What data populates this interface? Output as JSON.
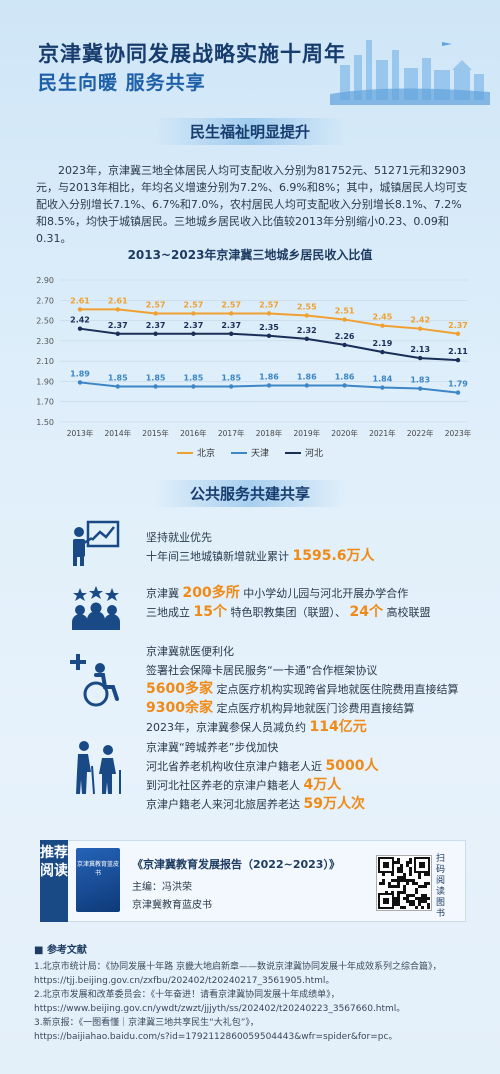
{
  "header": {
    "title": "京津冀协同发展战略实施十周年",
    "subtitle": "民生向暖  服务共享"
  },
  "section1": {
    "title": "民生福祉明显提升",
    "paragraph": "2023年，京津冀三地全体居民人均可支配收入分别为81752元、51271元和32903元，与2013年相比，年均名义增速分别为7.2%、6.9%和8%；其中，城镇居民人均可支配收入分别增长7.1%、6.7%和7.0%，农村居民人均可支配收入分别增长8.1%、7.2%和8.5%，均快于城镇居民。三地城乡居民收入比值较2013年分别缩小0.23、0.09和0.31。"
  },
  "chart_data": {
    "type": "line",
    "title": "2013~2023年京津冀三地城乡居民收入比值",
    "x": [
      "2013年",
      "2014年",
      "2015年",
      "2016年",
      "2017年",
      "2018年",
      "2019年",
      "2020年",
      "2021年",
      "2022年",
      "2023年"
    ],
    "yticks": [
      "2.90",
      "2.70",
      "2.50",
      "2.30",
      "2.10",
      "1.90",
      "1.70",
      "1.50"
    ],
    "ylim": [
      1.5,
      2.9
    ],
    "legend_position": "bottom",
    "series": [
      {
        "name": "北京",
        "color": "#f0a030",
        "values": [
          2.61,
          2.61,
          2.57,
          2.57,
          2.57,
          2.57,
          2.55,
          2.51,
          2.45,
          2.42,
          2.37
        ]
      },
      {
        "name": "天津",
        "color": "#3d86c6",
        "values": [
          1.89,
          1.85,
          1.85,
          1.85,
          1.85,
          1.86,
          1.86,
          1.86,
          1.84,
          1.83,
          1.79
        ]
      },
      {
        "name": "河北",
        "color": "#1a2f57",
        "values": [
          2.42,
          2.37,
          2.37,
          2.37,
          2.37,
          2.35,
          2.32,
          2.26,
          2.19,
          2.13,
          2.11
        ]
      }
    ]
  },
  "section2": {
    "title": "公共服务共建共享",
    "employment": {
      "title": "坚持就业优先",
      "text": "十年间三地城镇新增就业累计",
      "value": "1595.6万人"
    },
    "education": {
      "l1a": "京津冀",
      "l1v": "200多所",
      "l1b": "中小学幼儿园与河北开展办学合作",
      "l2a": "三地成立",
      "l2v": "15个",
      "l2b": "特色职教集团（联盟）、",
      "l2v2": "24个",
      "l2c": "高校联盟"
    },
    "medical": {
      "title": "京津冀就医便利化",
      "l1": "签署社会保障卡居民服务“一卡通”合作框架协议",
      "l2v": "5600多家",
      "l2": "定点医疗机构实现跨省异地就医住院费用直接结算",
      "l3v": "9300余家",
      "l3": "定点医疗机构异地就医门诊费用直接结算",
      "l4": "2023年，京津冀参保人员减负约",
      "l4v": "114亿元"
    },
    "elderly": {
      "title": "京津冀“跨城养老”步伐加快",
      "l1": "河北省养老机构收住京津户籍老人近",
      "l1v": "5000人",
      "l2": "到河北社区养老的京津户籍老人",
      "l2v": "4万人",
      "l3": "京津户籍老人来河北旅居养老达",
      "l3v": "59万人次"
    }
  },
  "recommend": {
    "tag": "推荐阅读",
    "book_title": "《京津冀教育发展报告（2022~2023）》",
    "editor": "主编：冯洪荣",
    "series": "京津冀教育蓝皮书",
    "qr_label": "扫码阅读图书"
  },
  "refs": {
    "heading": "参考文献",
    "items": [
      "1.北京市统计局：《协同发展十年路 京畿大地启新章——数说京津冀协同发展十年成效系列之综合篇》，",
      "https://tjj.beijing.gov.cn/zxfbu/202402/t20240217_3561905.html。",
      "2.北京市发展和改革委员会：《十年奋进！请看京津冀协同发展十年成绩单》，",
      "https://www.beijing.gov.cn/ywdt/zwzt/jjjyth/ss/202402/t20240223_3567660.html。",
      "3.新京报：《一图看懂｜京津冀三地共享民生“大礼包”》，",
      "https://baijiahao.baidu.com/s?id=1792112860059504443&wfr=spider&for=pc。"
    ]
  }
}
